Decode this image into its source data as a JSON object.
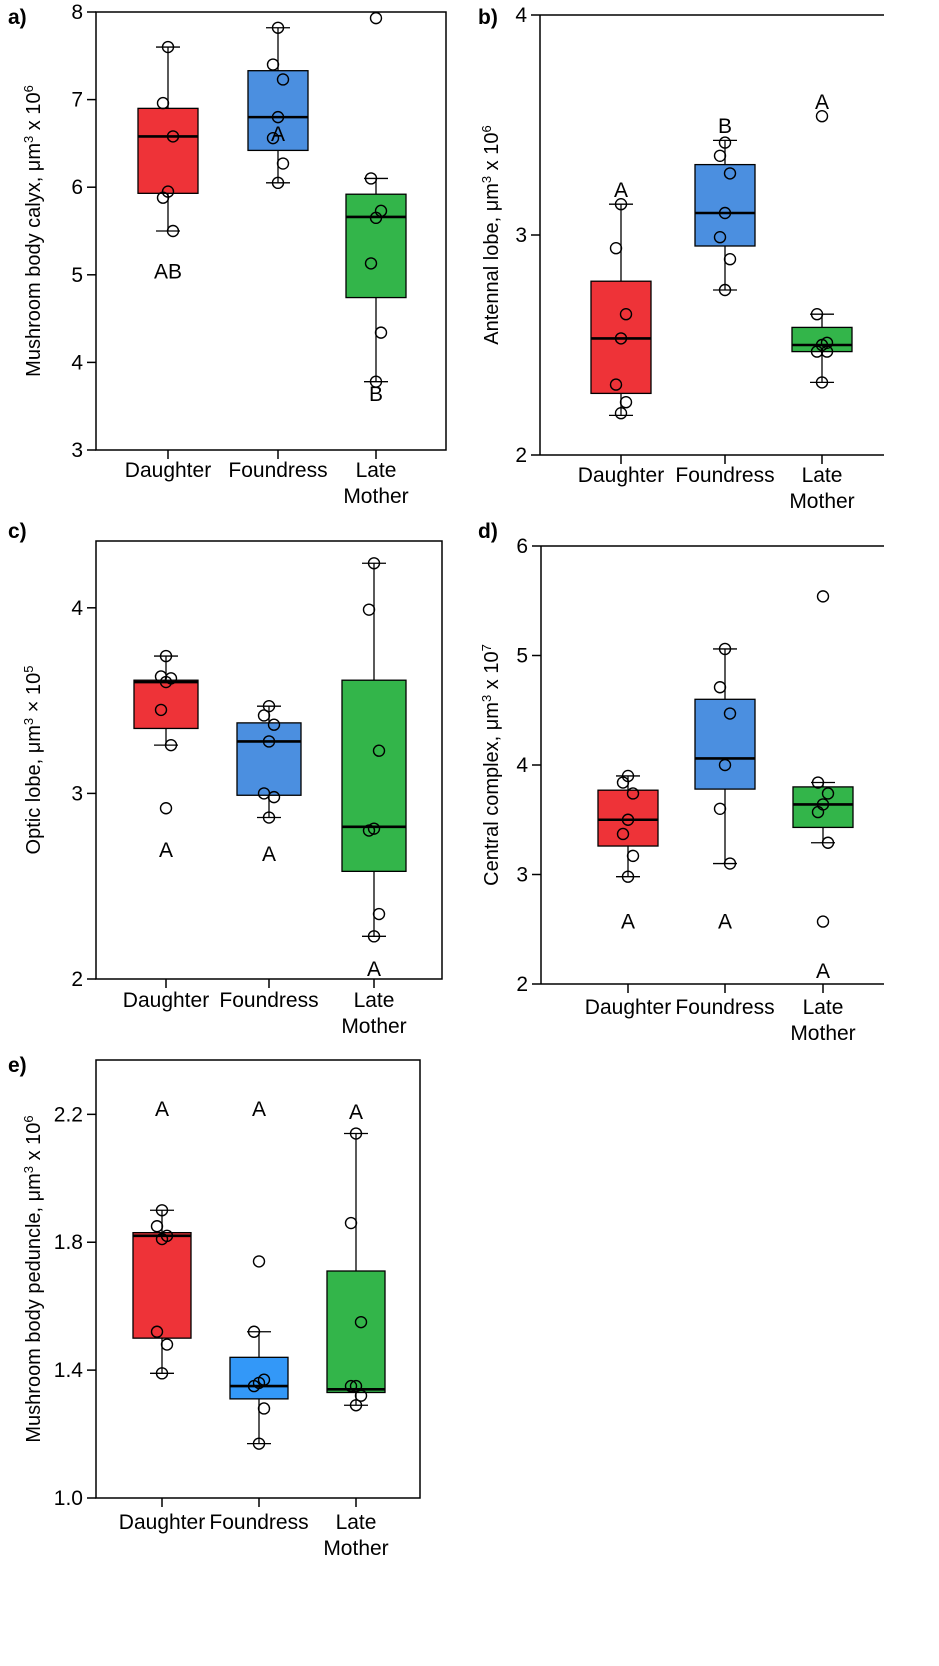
{
  "figure": {
    "panels": [
      {
        "letter": "a)",
        "ylabel_main": "Mushroom body calyx, μm",
        "ylabel_sup1": "3",
        "ylabel_mid": " x 10",
        "ylabel_sup2": "6"
      },
      {
        "letter": "b)",
        "ylabel_main": "Antennal lobe, μm",
        "ylabel_sup1": "3",
        "ylabel_mid": " x 10",
        "ylabel_sup2": "6"
      },
      {
        "letter": "c)",
        "ylabel_main": "Optic lobe, μm",
        "ylabel_sup1": "3",
        "ylabel_mid": " × 10",
        "ylabel_sup2": "5"
      },
      {
        "letter": "d)",
        "ylabel_main": "Central complex, μm",
        "ylabel_sup1": "3",
        "ylabel_mid": " x 10",
        "ylabel_sup2": "7"
      },
      {
        "letter": "e)",
        "ylabel_main": "Mushroom body peduncle, μm",
        "ylabel_sup1": "3",
        "ylabel_mid": " x 10",
        "ylabel_sup2": "6"
      }
    ]
  },
  "chart_data": [
    {
      "type": "box",
      "panel": "a)",
      "ylabel": "Mushroom body calyx, μm3 x 106",
      "ylim": [
        3,
        8
      ],
      "yticks": [
        "3",
        "4",
        "5",
        "6",
        "7",
        "8"
      ],
      "categories": [
        "Daughter",
        "Foundress",
        "Late Mother"
      ],
      "category_lines": [
        [
          "Daughter"
        ],
        [
          "Foundress"
        ],
        [
          "Late",
          "Mother"
        ]
      ],
      "colors": [
        "#ee3338",
        "#4b8fe0",
        "#33b54a"
      ],
      "boxes": [
        {
          "whisker_low": 5.5,
          "q1": 5.93,
          "median": 6.58,
          "q3": 6.9,
          "whisker_high": 7.6
        },
        {
          "whisker_low": 6.05,
          "q1": 6.42,
          "median": 6.8,
          "q3": 7.33,
          "whisker_high": 7.82
        },
        {
          "whisker_low": 3.78,
          "q1": 4.74,
          "median": 5.66,
          "q3": 5.92,
          "whisker_high": 6.1
        }
      ],
      "points": [
        [
          7.6,
          6.96,
          6.58,
          5.95,
          5.88,
          5.5
        ],
        [
          7.82,
          7.4,
          7.23,
          6.8,
          6.56,
          6.27,
          6.05
        ],
        [
          7.93,
          6.1,
          5.73,
          5.65,
          5.13,
          4.34,
          3.78
        ]
      ],
      "sig_letters": [
        "AB",
        "A",
        "B"
      ],
      "sig_y": [
        5.05,
        6.62,
        3.65
      ]
    },
    {
      "type": "box",
      "panel": "b)",
      "ylabel": "Antennal lobe, μm3 x 106",
      "ylim": [
        2,
        4
      ],
      "yticks": [
        "2",
        "3",
        "4"
      ],
      "categories": [
        "Daughter",
        "Foundress",
        "Late Mother"
      ],
      "category_lines": [
        [
          "Daughter"
        ],
        [
          "Foundress"
        ],
        [
          "Late",
          "Mother"
        ]
      ],
      "colors": [
        "#ee3338",
        "#4b8fe0",
        "#33b54a"
      ],
      "boxes": [
        {
          "whisker_low": 2.18,
          "q1": 2.28,
          "median": 2.53,
          "q3": 2.79,
          "whisker_high": 3.14
        },
        {
          "whisker_low": 2.75,
          "q1": 2.95,
          "median": 3.1,
          "q3": 3.32,
          "whisker_high": 3.43
        },
        {
          "whisker_low": 2.33,
          "q1": 2.47,
          "median": 2.5,
          "q3": 2.58,
          "whisker_high": 2.64
        }
      ],
      "points": [
        [
          3.14,
          2.94,
          2.64,
          2.53,
          2.32,
          2.24,
          2.19
        ],
        [
          3.42,
          3.36,
          3.28,
          3.1,
          2.99,
          2.89,
          2.75
        ],
        [
          3.54,
          2.64,
          2.51,
          2.5,
          2.47,
          2.47,
          2.33
        ]
      ],
      "sig_letters": [
        "A",
        "B",
        "A"
      ],
      "sig_y": [
        3.21,
        3.5,
        3.61
      ]
    },
    {
      "type": "box",
      "panel": "c)",
      "ylabel": "Optic lobe, μm3 × 105",
      "ylim": [
        2,
        4.36
      ],
      "yticks": [
        "2",
        "3",
        "4"
      ],
      "categories": [
        "Daughter",
        "Foundress",
        "Late Mother"
      ],
      "category_lines": [
        [
          "Daughter"
        ],
        [
          "Foundress"
        ],
        [
          "Late",
          "Mother"
        ]
      ],
      "colors": [
        "#ee3338",
        "#4b8fe0",
        "#33b54a"
      ],
      "boxes": [
        {
          "whisker_low": 3.26,
          "q1": 3.35,
          "median": 3.6,
          "q3": 3.61,
          "whisker_high": 3.74
        },
        {
          "whisker_low": 2.87,
          "q1": 2.99,
          "median": 3.28,
          "q3": 3.38,
          "whisker_high": 3.47
        },
        {
          "whisker_low": 2.23,
          "q1": 2.58,
          "median": 2.82,
          "q3": 3.61,
          "whisker_high": 4.24
        }
      ],
      "points": [
        [
          3.74,
          3.63,
          3.62,
          3.6,
          3.45,
          3.26,
          2.92
        ],
        [
          3.47,
          3.42,
          3.37,
          3.28,
          3.0,
          2.98,
          2.87
        ],
        [
          4.24,
          3.99,
          3.23,
          2.81,
          2.8,
          2.35,
          2.23
        ]
      ],
      "sig_letters": [
        "A",
        "A",
        "A"
      ],
      "sig_y": [
        2.7,
        2.68,
        2.06
      ]
    },
    {
      "type": "box",
      "panel": "d)",
      "ylabel": "Central complex, μm3 x 107",
      "ylim": [
        2,
        6
      ],
      "yticks": [
        "2",
        "3",
        "4",
        "5",
        "6"
      ],
      "categories": [
        "Daughter",
        "Foundress",
        "Late Mother"
      ],
      "category_lines": [
        [
          "Daughter"
        ],
        [
          "Foundress"
        ],
        [
          "Late",
          "Mother"
        ]
      ],
      "colors": [
        "#ee3338",
        "#4b8fe0",
        "#33b54a"
      ],
      "boxes": [
        {
          "whisker_low": 2.98,
          "q1": 3.26,
          "median": 3.5,
          "q3": 3.77,
          "whisker_high": 3.9
        },
        {
          "whisker_low": 3.1,
          "q1": 3.78,
          "median": 4.06,
          "q3": 4.6,
          "whisker_high": 5.06
        },
        {
          "whisker_low": 3.29,
          "q1": 3.43,
          "median": 3.64,
          "q3": 3.8,
          "whisker_high": 3.84
        }
      ],
      "points": [
        [
          3.9,
          3.84,
          3.74,
          3.5,
          3.37,
          3.17,
          2.98
        ],
        [
          5.06,
          4.71,
          4.47,
          4.0,
          3.6,
          3.1
        ],
        [
          5.54,
          3.84,
          3.74,
          3.64,
          3.57,
          3.29,
          2.57
        ]
      ],
      "sig_letters": [
        "A",
        "A",
        "A"
      ],
      "sig_y": [
        2.58,
        2.58,
        2.13
      ]
    },
    {
      "type": "box",
      "panel": "e)",
      "ylabel": "Mushroom body peduncle, μm3 x 106",
      "ylim": [
        1.0,
        2.37
      ],
      "yticks": [
        "1.0",
        "1.4",
        "1.8",
        "2.2"
      ],
      "categories": [
        "Daughter",
        "Foundress",
        "Late Mother"
      ],
      "category_lines": [
        [
          "Daughter"
        ],
        [
          "Foundress"
        ],
        [
          "Late",
          "Mother"
        ]
      ],
      "colors": [
        "#ee3338",
        "#3398f8",
        "#33b54a"
      ],
      "boxes": [
        {
          "whisker_low": 1.39,
          "q1": 1.5,
          "median": 1.82,
          "q3": 1.83,
          "whisker_high": 1.9
        },
        {
          "whisker_low": 1.17,
          "q1": 1.31,
          "median": 1.35,
          "q3": 1.44,
          "whisker_high": 1.52
        },
        {
          "whisker_low": 1.29,
          "q1": 1.33,
          "median": 1.34,
          "q3": 1.71,
          "whisker_high": 2.14
        }
      ],
      "points": [
        [
          1.9,
          1.85,
          1.82,
          1.81,
          1.52,
          1.48,
          1.39
        ],
        [
          1.74,
          1.52,
          1.37,
          1.36,
          1.35,
          1.28,
          1.17
        ],
        [
          2.14,
          1.86,
          1.55,
          1.35,
          1.35,
          1.32,
          1.29
        ]
      ],
      "sig_letters": [
        "A",
        "A",
        "A"
      ],
      "sig_y": [
        2.22,
        2.22,
        2.21
      ]
    }
  ]
}
